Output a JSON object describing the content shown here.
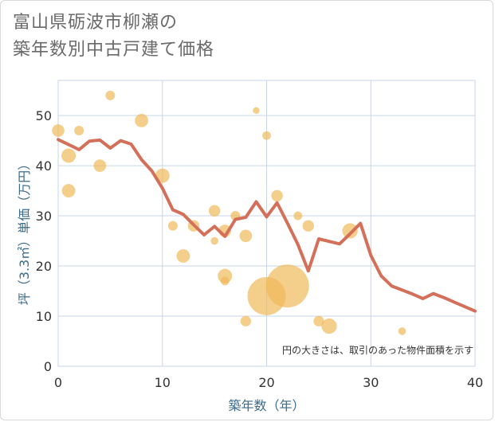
{
  "title": {
    "line1": "富山県砺波市柳瀬の",
    "line2": "築年数別中古戸建て価格"
  },
  "colors": {
    "bubble": "#f0b95a",
    "line": "#d4705a",
    "grid": "#c8d6e5",
    "axis_title": "#3d6b8a"
  },
  "chart_data": {
    "type": "scatter",
    "xlabel": "築年数（年）",
    "ylabel": "坪（3.3㎡）単価（万円）",
    "xlim": [
      0,
      40
    ],
    "ylim": [
      0,
      57
    ],
    "x_ticks": [
      0,
      10,
      20,
      30,
      40
    ],
    "y_ticks": [
      0,
      10,
      20,
      30,
      40,
      50
    ],
    "note": "円の大きさは、取引のあった物件面積を示す",
    "bubbles": [
      {
        "x": 0,
        "y": 47,
        "size": 1.3
      },
      {
        "x": 1,
        "y": 42,
        "size": 1.5
      },
      {
        "x": 1,
        "y": 35,
        "size": 1.4
      },
      {
        "x": 2,
        "y": 47,
        "size": 1.0
      },
      {
        "x": 4,
        "y": 40,
        "size": 1.3
      },
      {
        "x": 5,
        "y": 54,
        "size": 1.0
      },
      {
        "x": 8,
        "y": 49,
        "size": 1.4
      },
      {
        "x": 10,
        "y": 38,
        "size": 1.5
      },
      {
        "x": 11,
        "y": 28,
        "size": 1.0
      },
      {
        "x": 12,
        "y": 22,
        "size": 1.4
      },
      {
        "x": 13,
        "y": 28,
        "size": 1.2
      },
      {
        "x": 15,
        "y": 31,
        "size": 1.2
      },
      {
        "x": 15,
        "y": 25,
        "size": 0.8
      },
      {
        "x": 16,
        "y": 27,
        "size": 1.3
      },
      {
        "x": 16,
        "y": 18,
        "size": 1.5
      },
      {
        "x": 16,
        "y": 17,
        "size": 0.9
      },
      {
        "x": 17,
        "y": 30,
        "size": 1.0
      },
      {
        "x": 18,
        "y": 26,
        "size": 1.3
      },
      {
        "x": 18,
        "y": 9,
        "size": 1.1
      },
      {
        "x": 19,
        "y": 51,
        "size": 0.7
      },
      {
        "x": 20,
        "y": 46,
        "size": 0.9
      },
      {
        "x": 20,
        "y": 14,
        "size": 4.0
      },
      {
        "x": 21,
        "y": 34,
        "size": 1.2
      },
      {
        "x": 22,
        "y": 16,
        "size": 4.5
      },
      {
        "x": 23,
        "y": 30,
        "size": 0.9
      },
      {
        "x": 24,
        "y": 28,
        "size": 1.2
      },
      {
        "x": 25,
        "y": 9,
        "size": 1.1
      },
      {
        "x": 26,
        "y": 8,
        "size": 1.6
      },
      {
        "x": 28,
        "y": 27,
        "size": 1.6
      },
      {
        "x": 33,
        "y": 7,
        "size": 0.8
      }
    ],
    "trend": {
      "x": [
        0,
        1,
        2,
        3,
        4,
        5,
        6,
        7,
        8,
        9,
        10,
        11,
        12,
        13,
        14,
        15,
        16,
        17,
        18,
        19,
        20,
        21,
        22,
        23,
        24,
        25,
        26,
        27,
        28,
        29,
        30,
        31,
        32,
        33,
        34,
        35,
        36,
        37,
        38,
        39,
        40
      ],
      "y": [
        45.2,
        44.2,
        43.2,
        44.9,
        45.1,
        43.5,
        45.0,
        44.3,
        41.2,
        38.9,
        35.5,
        31.2,
        30.3,
        28.2,
        26.2,
        27.9,
        25.9,
        29.3,
        29.7,
        32.8,
        29.8,
        32.6,
        28.5,
        24.3,
        19.0,
        25.4,
        24.9,
        24.4,
        26.4,
        28.5,
        22.1,
        18.0,
        16.0,
        15.2,
        14.4,
        13.5,
        14.5,
        13.7,
        12.8,
        11.9,
        11.0
      ]
    }
  }
}
